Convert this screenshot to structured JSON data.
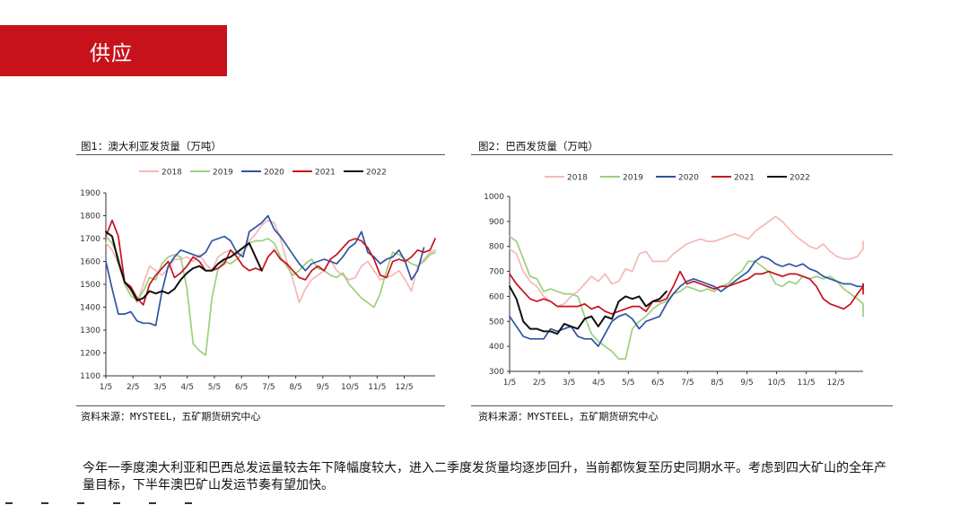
{
  "slide": {
    "section_title": "供应",
    "description": "今年一季度澳大利亚和巴西总发运量较去年下降幅度较大，进入二季度发货量均逐步回升，当前都恢复至历史同期水平。考虑到四大矿山的全年产量目标，下半年澳巴矿山发运节奏有望加快。",
    "colors": {
      "banner": "#c7121c"
    }
  },
  "charts": [
    {
      "fig_title": "图1：澳大利亚发货量（万吨）",
      "source": "资料来源：MYSTEEL，五矿期货研究中心"
    },
    {
      "fig_title": "图2：巴西发货量（万吨）",
      "source": "资料来源：MYSTEEL，五矿期货研究中心"
    }
  ],
  "chart_data": [
    {
      "type": "line",
      "title": "图1：澳大利亚发货量（万吨）",
      "x_ticks": [
        "1/5",
        "2/5",
        "3/5",
        "4/5",
        "5/5",
        "6/5",
        "7/5",
        "8/5",
        "9/5",
        "10/5",
        "11/5",
        "12/5"
      ],
      "ylim": [
        1100,
        1900
      ],
      "y_ticks": [
        1100,
        1200,
        1300,
        1400,
        1500,
        1600,
        1700,
        1800,
        1900
      ],
      "legend_position": "top",
      "series": [
        {
          "name": "2018",
          "color": "#f4b8b8",
          "start_week": 1,
          "values": [
            1680,
            1650,
            1590,
            1510,
            1470,
            1420,
            1500,
            1580,
            1560,
            1540,
            1570,
            1610,
            1610,
            1620,
            1600,
            1630,
            1590,
            1560,
            1620,
            1640,
            1650,
            1630,
            1660,
            1690,
            1720,
            1760,
            1780,
            1770,
            1700,
            1600,
            1520,
            1420,
            1480,
            1520,
            1540,
            1560,
            1610,
            1560,
            1540,
            1520,
            1530,
            1580,
            1600,
            1560,
            1520,
            1530,
            1540,
            1560,
            1520,
            1470,
            1580,
            1610,
            1640,
            1650
          ]
        },
        {
          "name": "2019",
          "color": "#9ccf7f",
          "start_week": 1,
          "values": [
            1710,
            1680,
            1620,
            1500,
            1450,
            1430,
            1470,
            1530,
            1520,
            1590,
            1620,
            1630,
            1620,
            1480,
            1240,
            1210,
            1190,
            1440,
            1570,
            1600,
            1590,
            1610,
            1640,
            1680,
            1690,
            1690,
            1700,
            1680,
            1620,
            1580,
            1540,
            1560,
            1590,
            1610,
            1570,
            1560,
            1540,
            1530,
            1550,
            1500,
            1470,
            1440,
            1420,
            1400,
            1460,
            1560,
            1640,
            1630,
            1610,
            1590,
            1580,
            1600,
            1630,
            1640
          ]
        },
        {
          "name": "2020",
          "color": "#2e54a3",
          "start_week": 1,
          "values": [
            1600,
            1480,
            1370,
            1370,
            1380,
            1340,
            1330,
            1330,
            1320,
            1470,
            1580,
            1620,
            1650,
            1640,
            1630,
            1620,
            1640,
            1690,
            1700,
            1710,
            1690,
            1640,
            1620,
            1730,
            1750,
            1770,
            1800,
            1740,
            1710,
            1670,
            1630,
            1590,
            1560,
            1590,
            1600,
            1610,
            1600,
            1590,
            1620,
            1660,
            1680,
            1730,
            1640,
            1620,
            1590,
            1610,
            1620,
            1650,
            1600,
            1520,
            1560,
            1660
          ]
        },
        {
          "name": "2021",
          "color": "#c7121c",
          "start_week": 1,
          "values": [
            1710,
            1780,
            1710,
            1510,
            1490,
            1440,
            1410,
            1500,
            1540,
            1570,
            1600,
            1530,
            1550,
            1580,
            1620,
            1600,
            1560,
            1560,
            1570,
            1590,
            1650,
            1620,
            1580,
            1560,
            1570,
            1560,
            1620,
            1650,
            1610,
            1590,
            1560,
            1530,
            1520,
            1560,
            1580,
            1560,
            1610,
            1630,
            1660,
            1690,
            1700,
            1690,
            1660,
            1610,
            1540,
            1530,
            1600,
            1610,
            1600,
            1620,
            1650,
            1640,
            1650,
            1700
          ]
        },
        {
          "name": "2022",
          "color": "#111111",
          "start_week": 1,
          "values": [
            1730,
            1710,
            1600,
            1510,
            1480,
            1430,
            1440,
            1470,
            1460,
            1470,
            1460,
            1480,
            1520,
            1550,
            1570,
            1580,
            1560,
            1560,
            1590,
            1610,
            1620,
            1640,
            1660,
            1680,
            1620,
            1560
          ]
        }
      ]
    },
    {
      "type": "line",
      "title": "图2：巴西发货量（万吨）",
      "x_ticks": [
        "1/5",
        "2/5",
        "3/5",
        "4/5",
        "5/5",
        "6/5",
        "7/5",
        "8/5",
        "9/5",
        "10/5",
        "11/5",
        "12/5"
      ],
      "ylim": [
        300,
        1000
      ],
      "y_ticks": [
        300,
        400,
        500,
        600,
        700,
        800,
        900,
        1000
      ],
      "legend_position": "top",
      "series": [
        {
          "name": "2018",
          "color": "#f4b8b8",
          "start_week": 1,
          "values": [
            790,
            770,
            700,
            660,
            640,
            600,
            580,
            560,
            570,
            600,
            620,
            650,
            680,
            660,
            690,
            650,
            660,
            710,
            700,
            770,
            780,
            740,
            740,
            740,
            770,
            790,
            810,
            820,
            830,
            820,
            820,
            830,
            840,
            850,
            840,
            830,
            860,
            880,
            900,
            920,
            900,
            870,
            840,
            820,
            800,
            790,
            810,
            780,
            760,
            750,
            750,
            760,
            790,
            820
          ]
        },
        {
          "name": "2019",
          "color": "#9ccf7f",
          "start_week": 1,
          "values": [
            840,
            820,
            750,
            680,
            670,
            620,
            630,
            620,
            610,
            610,
            600,
            520,
            450,
            420,
            400,
            380,
            350,
            350,
            470,
            500,
            520,
            550,
            570,
            580,
            610,
            620,
            640,
            630,
            620,
            630,
            620,
            640,
            650,
            680,
            700,
            740,
            740,
            720,
            700,
            650,
            640,
            660,
            650,
            680,
            670,
            680,
            670,
            680,
            660,
            630,
            610,
            590,
            570,
            550,
            520
          ]
        },
        {
          "name": "2020",
          "color": "#2e54a3",
          "start_week": 1,
          "values": [
            520,
            480,
            440,
            430,
            430,
            430,
            470,
            460,
            470,
            480,
            440,
            430,
            430,
            400,
            450,
            500,
            520,
            530,
            510,
            470,
            500,
            510,
            520,
            570,
            610,
            640,
            660,
            670,
            660,
            650,
            640,
            620,
            640,
            660,
            680,
            700,
            740,
            760,
            750,
            730,
            720,
            730,
            720,
            730,
            710,
            700,
            680,
            670,
            660,
            650,
            650,
            640,
            640,
            650
          ]
        },
        {
          "name": "2021",
          "color": "#c7121c",
          "start_week": 1,
          "values": [
            690,
            650,
            620,
            590,
            580,
            590,
            580,
            560,
            560,
            560,
            560,
            570,
            550,
            560,
            540,
            530,
            540,
            550,
            560,
            560,
            540,
            580,
            580,
            590,
            640,
            700,
            650,
            660,
            650,
            640,
            630,
            640,
            640,
            650,
            660,
            670,
            690,
            690,
            700,
            690,
            680,
            690,
            690,
            680,
            670,
            640,
            590,
            570,
            560,
            550,
            570,
            610,
            640,
            650,
            620,
            610
          ]
        },
        {
          "name": "2022",
          "color": "#111111",
          "start_week": 1,
          "values": [
            640,
            590,
            500,
            470,
            470,
            460,
            460,
            450,
            490,
            480,
            470,
            510,
            520,
            480,
            520,
            510,
            580,
            600,
            590,
            600,
            560,
            580,
            590,
            620
          ]
        }
      ]
    }
  ]
}
